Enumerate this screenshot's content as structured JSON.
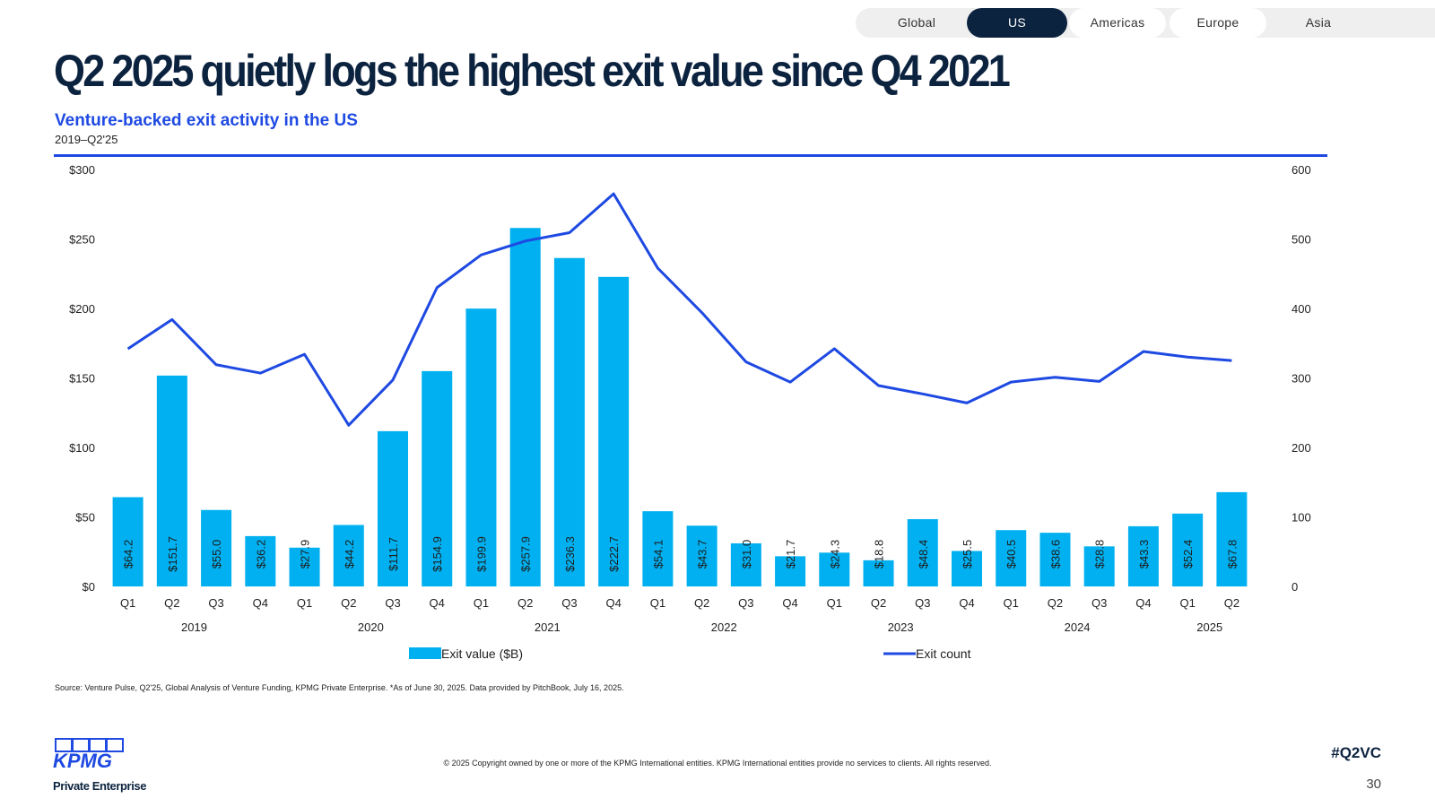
{
  "tabs": [
    {
      "label": "Global",
      "active": false
    },
    {
      "label": "US",
      "active": true
    },
    {
      "label": "Americas",
      "active": false
    },
    {
      "label": "Europe",
      "active": false
    },
    {
      "label": "Asia",
      "active": false
    }
  ],
  "title": "Q2 2025 quietly logs the highest exit value since Q4 2021",
  "source": "Source: Venture Pulse, Q2'25, Global Analysis of Venture Funding, KPMG Private Enterprise. *As of June 30, 2025. Data provided by PitchBook, July 16, 2025.",
  "logo": {
    "wordmark": "KPMG",
    "tagline": "Private Enterprise"
  },
  "copyright": "© 2025 Copyright owned by one or more of the KPMG International entities. KPMG International entities provide no services to clients. All rights reserved.",
  "hashtag": "#Q2VC",
  "page_number": "30",
  "colors": {
    "bar": "#00b0f0",
    "line": "#1e49e2",
    "navy": "#0c233f",
    "accent": "#1e49e2"
  },
  "chart_data": {
    "type": "bar+line",
    "title": "Venture-backed exit activity in the US",
    "subtitle": "2019–Q2'25",
    "quarters": [
      "Q1",
      "Q2",
      "Q3",
      "Q4",
      "Q1",
      "Q2",
      "Q3",
      "Q4",
      "Q1",
      "Q2",
      "Q3",
      "Q4",
      "Q1",
      "Q2",
      "Q3",
      "Q4",
      "Q1",
      "Q2",
      "Q3",
      "Q4",
      "Q1",
      "Q2",
      "Q3",
      "Q4",
      "Q1",
      "Q2"
    ],
    "years": [
      {
        "label": "2019",
        "span": 4
      },
      {
        "label": "2020",
        "span": 4
      },
      {
        "label": "2021",
        "span": 4
      },
      {
        "label": "2022",
        "span": 4
      },
      {
        "label": "2023",
        "span": 4
      },
      {
        "label": "2024",
        "span": 4
      },
      {
        "label": "2025",
        "span": 2
      }
    ],
    "y_left": {
      "min": 0,
      "max": 300,
      "ticks": [
        "$0",
        "$50",
        "$100",
        "$150",
        "$200",
        "$250",
        "$300"
      ]
    },
    "y_right": {
      "min": 0,
      "max": 600,
      "ticks": [
        "0",
        "100",
        "200",
        "300",
        "400",
        "500",
        "600"
      ]
    },
    "series": [
      {
        "name": "Exit value ($B)",
        "type": "bar",
        "axis": "left",
        "values": [
          64.2,
          151.7,
          55.0,
          36.2,
          27.9,
          44.2,
          111.7,
          154.9,
          199.9,
          257.9,
          236.3,
          222.7,
          54.1,
          43.7,
          31.0,
          21.7,
          24.3,
          18.8,
          48.4,
          25.5,
          40.5,
          38.6,
          28.8,
          43.3,
          52.4,
          67.8
        ],
        "labels": [
          "$64.2",
          "$151.7",
          "$55.0",
          "$36.2",
          "$27.9",
          "$44.2",
          "$111.7",
          "$154.9",
          "$199.9",
          "$257.9",
          "$236.3",
          "$222.7",
          "$54.1",
          "$43.7",
          "$31.0",
          "$21.7",
          "$24.3",
          "$18.8",
          "$48.4",
          "$25.5",
          "$40.5",
          "$38.6",
          "$28.8",
          "$43.3",
          "$52.4",
          "$67.8"
        ]
      },
      {
        "name": "Exit count",
        "type": "line",
        "axis": "right",
        "values": [
          342,
          384,
          319,
          307,
          334,
          232,
          297,
          430,
          477,
          497,
          509,
          565,
          458,
          394,
          323,
          294,
          342,
          289,
          277,
          264,
          294,
          301,
          295,
          338,
          330,
          325
        ]
      }
    ],
    "legend": "bottom"
  }
}
